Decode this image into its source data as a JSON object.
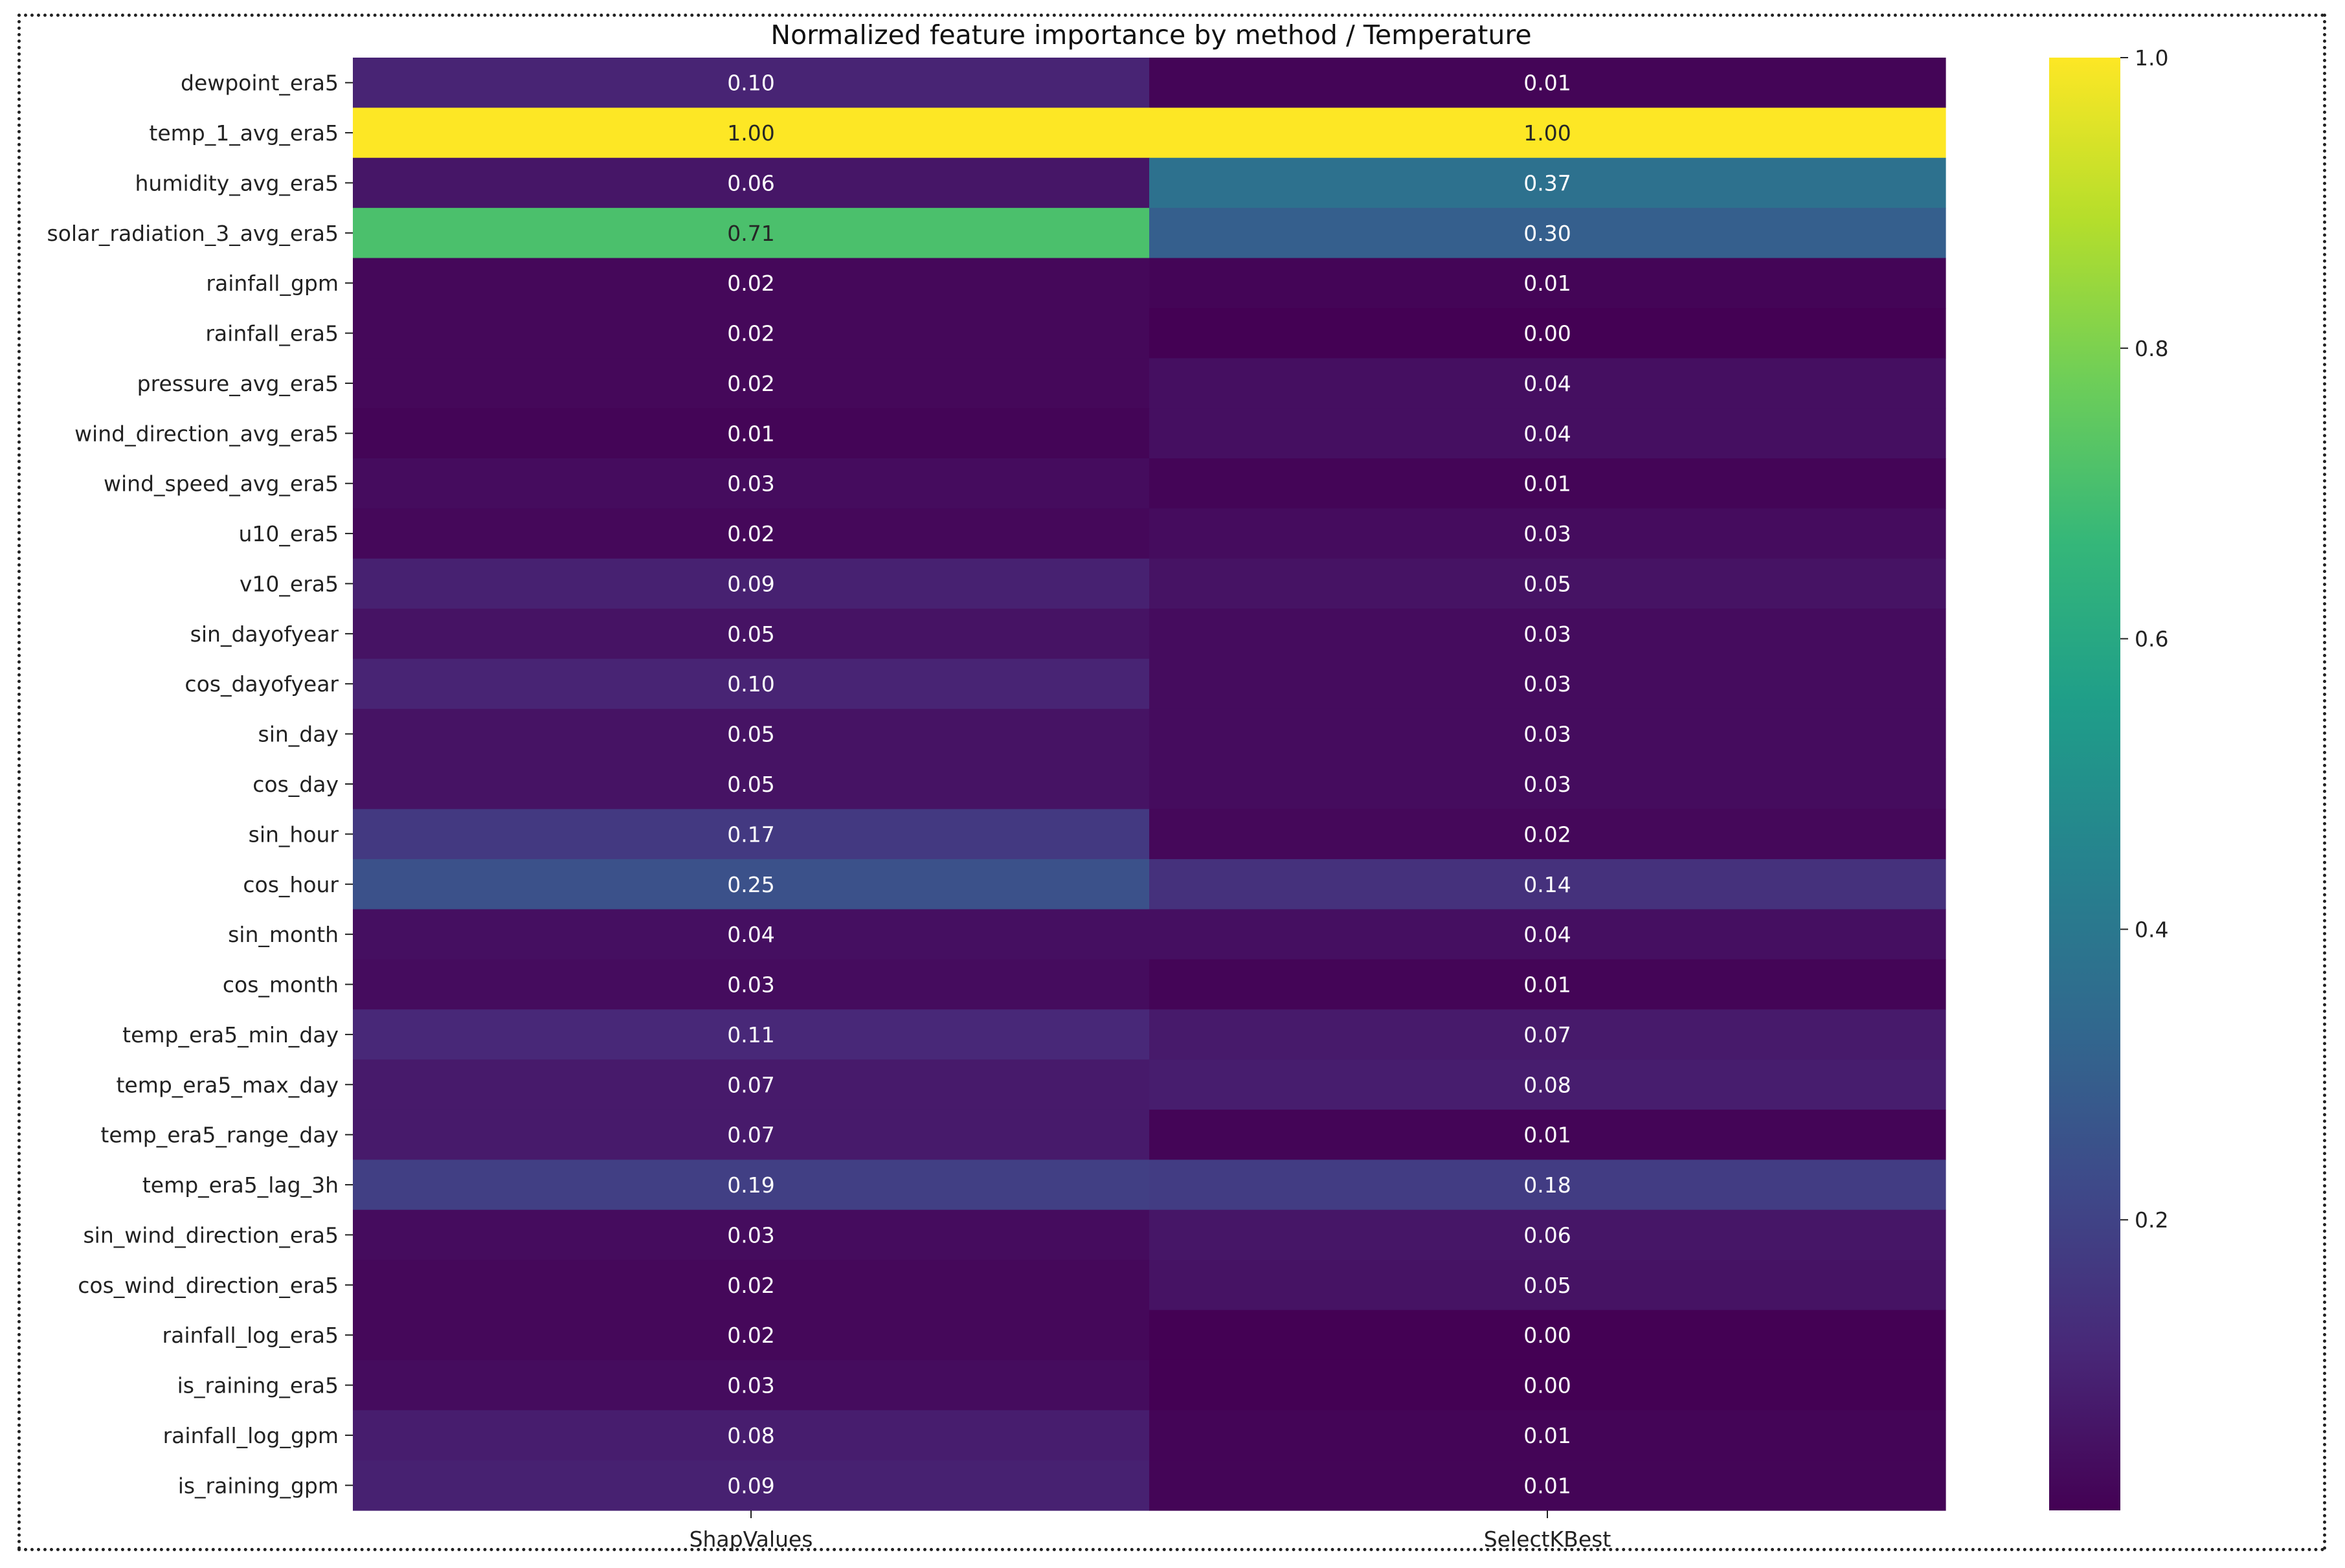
{
  "chart_data": {
    "type": "heatmap",
    "title": "Normalized feature importance by method / Temperature",
    "xlabel": "",
    "ylabel": "",
    "columns": [
      "ShapValues",
      "SelectKBest"
    ],
    "rows": [
      "dewpoint_era5",
      "temp_1_avg_era5",
      "humidity_avg_era5",
      "solar_radiation_3_avg_era5",
      "rainfall_gpm",
      "rainfall_era5",
      "pressure_avg_era5",
      "wind_direction_avg_era5",
      "wind_speed_avg_era5",
      "u10_era5",
      "v10_era5",
      "sin_dayofyear",
      "cos_dayofyear",
      "sin_day",
      "cos_day",
      "sin_hour",
      "cos_hour",
      "sin_month",
      "cos_month",
      "temp_era5_min_day",
      "temp_era5_max_day",
      "temp_era5_range_day",
      "temp_era5_lag_3h",
      "sin_wind_direction_era5",
      "cos_wind_direction_era5",
      "rainfall_log_era5",
      "is_raining_era5",
      "rainfall_log_gpm",
      "is_raining_gpm"
    ],
    "values": [
      [
        0.1,
        0.01
      ],
      [
        1.0,
        1.0
      ],
      [
        0.06,
        0.37
      ],
      [
        0.71,
        0.3
      ],
      [
        0.02,
        0.01
      ],
      [
        0.02,
        0.0
      ],
      [
        0.02,
        0.04
      ],
      [
        0.01,
        0.04
      ],
      [
        0.03,
        0.01
      ],
      [
        0.02,
        0.03
      ],
      [
        0.09,
        0.05
      ],
      [
        0.05,
        0.03
      ],
      [
        0.1,
        0.03
      ],
      [
        0.05,
        0.03
      ],
      [
        0.05,
        0.03
      ],
      [
        0.17,
        0.02
      ],
      [
        0.25,
        0.14
      ],
      [
        0.04,
        0.04
      ],
      [
        0.03,
        0.01
      ],
      [
        0.11,
        0.07
      ],
      [
        0.07,
        0.08
      ],
      [
        0.07,
        0.01
      ],
      [
        0.19,
        0.18
      ],
      [
        0.03,
        0.06
      ],
      [
        0.02,
        0.05
      ],
      [
        0.02,
        0.0
      ],
      [
        0.03,
        0.0
      ],
      [
        0.08,
        0.01
      ],
      [
        0.09,
        0.01
      ]
    ],
    "colormap": "viridis",
    "value_format": "0.00",
    "colorbar": {
      "range": [
        0.0,
        1.0
      ],
      "ticks": [
        0.2,
        0.4,
        0.6,
        0.8,
        1.0
      ],
      "tick_labels": [
        "0.2",
        "0.4",
        "0.6",
        "0.8",
        "1.0"
      ]
    },
    "grid": false,
    "legend": "colorbar-right"
  }
}
